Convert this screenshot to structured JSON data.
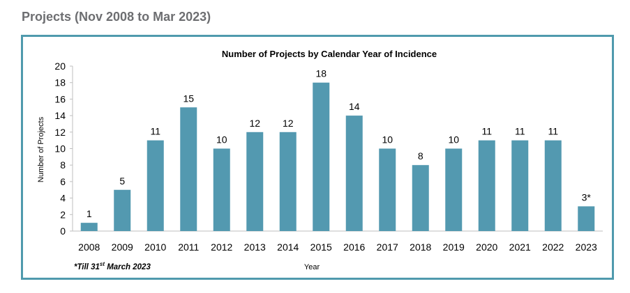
{
  "page": {
    "heading": "Projects (Nov 2008 to Mar 2023)"
  },
  "colors": {
    "bar": "#5399b0",
    "frame": "#4f9aad",
    "heading": "#6d6e71"
  },
  "chart_data": {
    "type": "bar",
    "title": "Number of Projects by Calendar Year of Incidence",
    "xlabel": "Year",
    "ylabel": "Number of Projects",
    "ylim": [
      0,
      20
    ],
    "yticks": [
      0,
      2,
      4,
      6,
      8,
      10,
      12,
      14,
      16,
      18,
      20
    ],
    "categories": [
      "2008",
      "2009",
      "2010",
      "2011",
      "2012",
      "2013",
      "2014",
      "2015",
      "2016",
      "2017",
      "2018",
      "2019",
      "2020",
      "2021",
      "2022",
      "2023"
    ],
    "values": [
      1,
      5,
      11,
      15,
      10,
      12,
      12,
      18,
      14,
      10,
      8,
      10,
      11,
      11,
      11,
      3
    ],
    "data_labels": [
      "1",
      "5",
      "11",
      "15",
      "10",
      "12",
      "12",
      "18",
      "14",
      "10",
      "8",
      "10",
      "11",
      "11",
      "11",
      "3*"
    ],
    "footnote": {
      "prefix": "*Till 31",
      "superscript": "st",
      "suffix": " March 2023"
    },
    "grid": false,
    "legend": "none"
  }
}
